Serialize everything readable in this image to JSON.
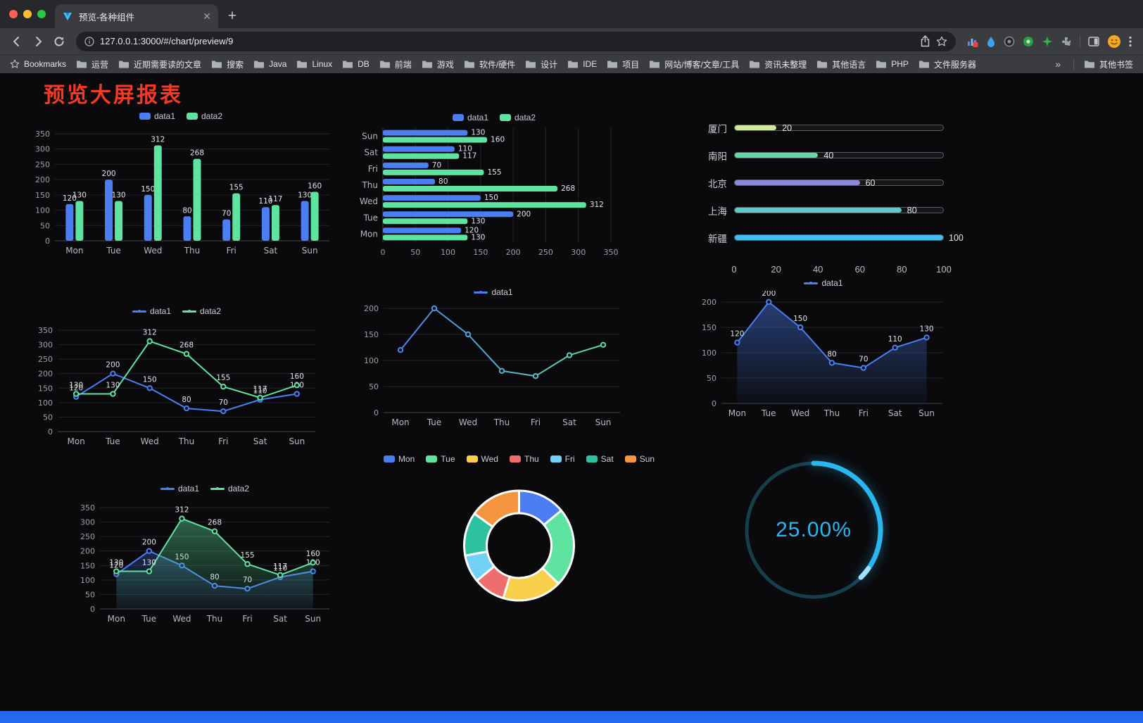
{
  "browser": {
    "tab_title": "预览-各种组件",
    "url": "127.0.0.1:3000/#/chart/preview/9",
    "bookmarks_label": "Bookmarks",
    "bookmarks": [
      "运营",
      "近期需要读的文章",
      "搜索",
      "Java",
      "Linux",
      "DB",
      "前端",
      "游戏",
      "软件/硬件",
      "设计",
      "IDE",
      "项目",
      "网站/博客/文章/工具",
      "资讯未整理",
      "其他语言",
      "PHP",
      "文件服务器"
    ],
    "bookmarks_overflow": "»",
    "other_bookmarks": "其他书签"
  },
  "page": {
    "title": "预览大屏报表",
    "title_color": "#f23a26"
  },
  "chart_data": [
    {
      "id": "bar-grouped",
      "type": "bar",
      "categories": [
        "Mon",
        "Tue",
        "Wed",
        "Thu",
        "Fri",
        "Sat",
        "Sun"
      ],
      "series": [
        {
          "name": "data1",
          "color": "#4a7ef2",
          "values": [
            120,
            200,
            150,
            80,
            70,
            110,
            130
          ]
        },
        {
          "name": "data2",
          "color": "#5fe3a1",
          "values": [
            130,
            130,
            312,
            268,
            155,
            117,
            160
          ]
        }
      ],
      "ylim": [
        0,
        350
      ],
      "ytick": 50,
      "legend_position": "top",
      "grid": true,
      "value_labels": true
    },
    {
      "id": "bar-horizontal",
      "type": "bar",
      "orientation": "horizontal",
      "categories": [
        "Mon",
        "Tue",
        "Wed",
        "Thu",
        "Fri",
        "Sat",
        "Sun"
      ],
      "series": [
        {
          "name": "data1",
          "color": "#4a7ef2",
          "values": [
            120,
            200,
            150,
            80,
            70,
            110,
            130
          ]
        },
        {
          "name": "data2",
          "color": "#5fe3a1",
          "values": [
            130,
            130,
            312,
            268,
            155,
            117,
            160
          ]
        }
      ],
      "xlim": [
        0,
        350
      ],
      "xtick": 50,
      "legend_position": "top",
      "grid": true,
      "value_labels": true
    },
    {
      "id": "progress-list",
      "type": "bar",
      "orientation": "progress",
      "items": [
        {
          "label": "厦门",
          "value": 20,
          "color": "#cfe7a2"
        },
        {
          "label": "南阳",
          "value": 40,
          "color": "#5fd8a3"
        },
        {
          "label": "北京",
          "value": 60,
          "color": "#8a88d8"
        },
        {
          "label": "上海",
          "value": 80,
          "color": "#59ccc9"
        },
        {
          "label": "新疆",
          "value": 100,
          "color": "#41bff0"
        }
      ],
      "xlim": [
        0,
        100
      ],
      "xticks": [
        0,
        20,
        40,
        60,
        80,
        100
      ]
    },
    {
      "id": "line-two",
      "type": "line",
      "categories": [
        "Mon",
        "Tue",
        "Wed",
        "Thu",
        "Fri",
        "Sat",
        "Sun"
      ],
      "series": [
        {
          "name": "data1",
          "color": "#4a7ef2",
          "values": [
            120,
            200,
            150,
            80,
            70,
            110,
            130
          ]
        },
        {
          "name": "data2",
          "color": "#5fe3a1",
          "values": [
            130,
            130,
            312,
            268,
            155,
            117,
            160
          ]
        }
      ],
      "ylim": [
        0,
        350
      ],
      "ytick": 50,
      "legend_position": "top",
      "grid": true,
      "value_labels": true
    },
    {
      "id": "line-gradient",
      "type": "line",
      "categories": [
        "Mon",
        "Tue",
        "Wed",
        "Thu",
        "Fri",
        "Sat",
        "Sun"
      ],
      "series": [
        {
          "name": "data1",
          "color": "#4a7ef2",
          "color_end": "#5fe3a1",
          "values": [
            120,
            200,
            150,
            80,
            70,
            110,
            130
          ]
        }
      ],
      "ylim": [
        0,
        200
      ],
      "ytick": 50,
      "legend_position": "top",
      "grid": true,
      "value_labels": false
    },
    {
      "id": "line-area",
      "type": "line",
      "categories": [
        "Mon",
        "Tue",
        "Wed",
        "Thu",
        "Fri",
        "Sat",
        "Sun"
      ],
      "series": [
        {
          "name": "data1",
          "color": "#4a7ef2",
          "area": true,
          "values": [
            120,
            200,
            150,
            80,
            70,
            110,
            130
          ]
        }
      ],
      "ylim": [
        0,
        200
      ],
      "ytick": 50,
      "legend_position": "top",
      "grid": true,
      "value_labels": true
    },
    {
      "id": "line-two-area",
      "type": "line",
      "categories": [
        "Mon",
        "Tue",
        "Wed",
        "Thu",
        "Fri",
        "Sat",
        "Sun"
      ],
      "series": [
        {
          "name": "data1",
          "color": "#4a7ef2",
          "area": true,
          "values": [
            120,
            200,
            150,
            80,
            70,
            110,
            130
          ]
        },
        {
          "name": "data2",
          "color": "#5fe3a1",
          "area": true,
          "values": [
            130,
            130,
            312,
            268,
            155,
            117,
            160
          ]
        }
      ],
      "ylim": [
        0,
        350
      ],
      "ytick": 50,
      "legend_position": "top",
      "grid": true,
      "value_labels": true
    },
    {
      "id": "donut",
      "type": "pie",
      "donut": true,
      "legend_position": "top",
      "items": [
        {
          "label": "Mon",
          "value": 120,
          "color": "#4a7ef2"
        },
        {
          "label": "Tue",
          "value": 200,
          "color": "#5fe3a1"
        },
        {
          "label": "Wed",
          "value": 150,
          "color": "#f8d04b"
        },
        {
          "label": "Thu",
          "value": 80,
          "color": "#ee6e6e"
        },
        {
          "label": "Fri",
          "value": 70,
          "color": "#72d2f5"
        },
        {
          "label": "Sat",
          "value": 110,
          "color": "#2cc1a0"
        },
        {
          "label": "Sun",
          "value": 130,
          "color": "#f6953f"
        }
      ]
    },
    {
      "id": "gauge",
      "type": "gauge",
      "value": 25,
      "label": "25.00%",
      "color": "#2ab6ef"
    }
  ]
}
